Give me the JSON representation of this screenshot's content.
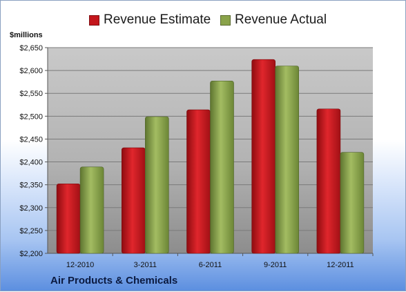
{
  "legend": {
    "estimate_label": "Revenue Estimate",
    "actual_label": "Revenue Actual"
  },
  "unit_label": "$millions",
  "company": "Air Products & Chemicals",
  "colors": {
    "estimate": "#c4161c",
    "actual": "#8aa34a"
  },
  "chart_data": {
    "type": "bar",
    "categories": [
      "12-2010",
      "3-2011",
      "6-2011",
      "9-2011",
      "12-2011"
    ],
    "series": [
      {
        "name": "Revenue Estimate",
        "values": [
          2352,
          2431,
          2514,
          2624,
          2516
        ]
      },
      {
        "name": "Revenue Actual",
        "values": [
          2389,
          2499,
          2577,
          2610,
          2421
        ]
      }
    ],
    "ylim": [
      2200,
      2650
    ],
    "ytick_step": 50,
    "ytick_labels": [
      "$2,200",
      "$2,250",
      "$2,300",
      "$2,350",
      "$2,400",
      "$2,450",
      "$2,500",
      "$2,550",
      "$2,600",
      "$2,650"
    ],
    "grid": true,
    "legend_position": "top"
  }
}
